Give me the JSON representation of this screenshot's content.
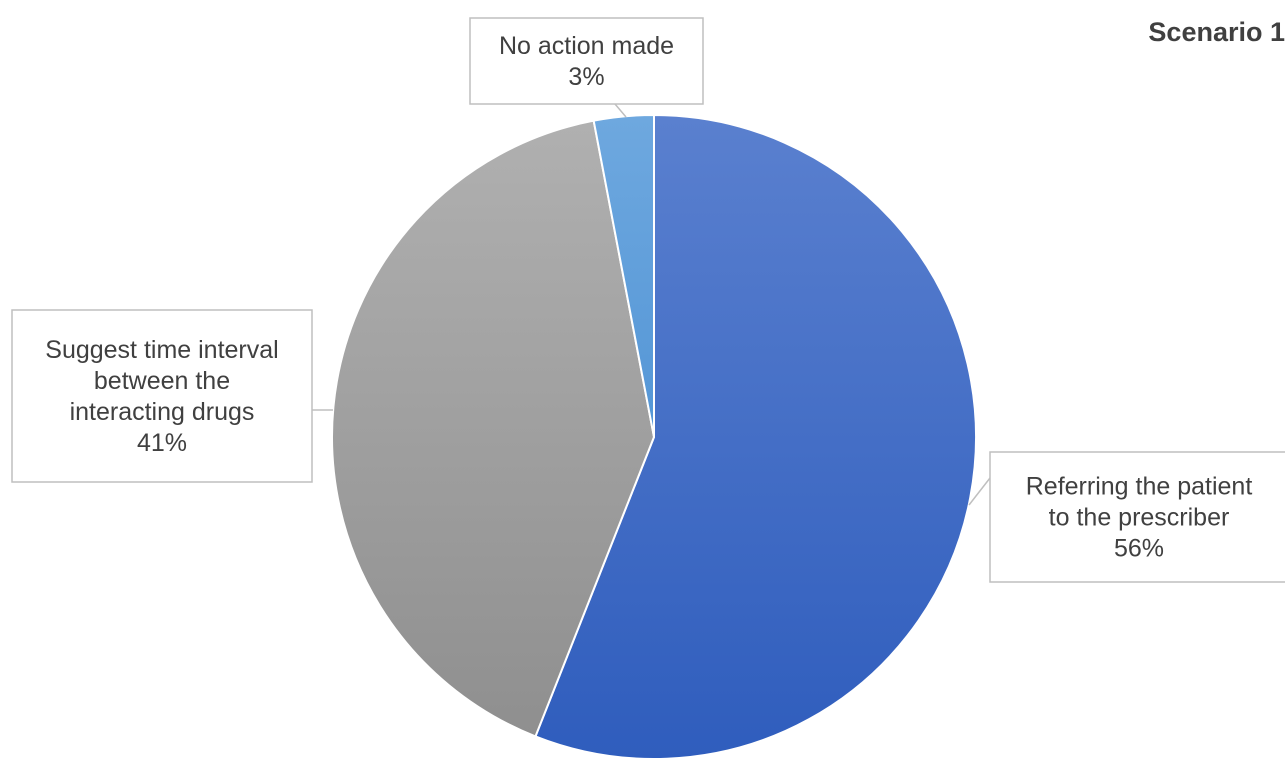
{
  "chart_data": {
    "type": "pie",
    "title": "Scenario 1",
    "slices": [
      {
        "label_lines": [
          "Referring the patient",
          "to the prescriber"
        ],
        "value": 56,
        "value_label": "56%",
        "color": "#3a68c4"
      },
      {
        "label_lines": [
          "Suggest time interval",
          "between the",
          "interacting drugs"
        ],
        "value": 41,
        "value_label": "41%",
        "color": "#9c9c9c"
      },
      {
        "label_lines": [
          "No action made"
        ],
        "value": 3,
        "value_label": "3%",
        "color": "#5d9fdb"
      }
    ],
    "start": "12 o'clock",
    "direction": "clockwise",
    "legend": "none",
    "data_labels": "callouts"
  }
}
